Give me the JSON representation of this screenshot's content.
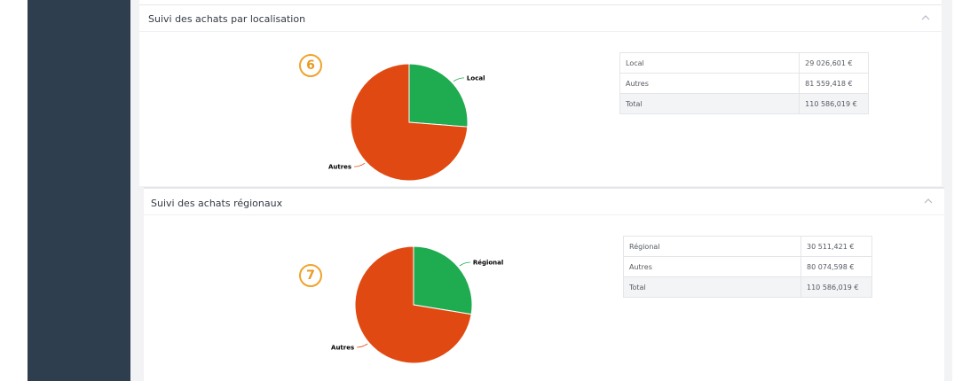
{
  "panels": [
    {
      "title": "Suivi des achats par localisation",
      "step": "6",
      "table": [
        {
          "label": "Local",
          "value": "29 026,601 €"
        },
        {
          "label": "Autres",
          "value": "81 559,418 €"
        },
        {
          "label": "Total",
          "value": "110 586,019 €"
        }
      ]
    },
    {
      "title": "Suivi des achats régionaux",
      "step": "7",
      "table": [
        {
          "label": "Régional",
          "value": "30 511,421 €"
        },
        {
          "label": "Autres",
          "value": "80 074,598 €"
        },
        {
          "label": "Total",
          "value": "110 586,019 €"
        }
      ]
    }
  ],
  "chart_data": [
    {
      "type": "pie",
      "slices": [
        {
          "label": "Local",
          "value": 29026.601,
          "color": "#1fab4f"
        },
        {
          "label": "Autres",
          "value": 81559.418,
          "color": "#e04a12"
        }
      ]
    },
    {
      "type": "pie",
      "slices": [
        {
          "label": "Régional",
          "value": 30511.421,
          "color": "#1fab4f"
        },
        {
          "label": "Autres",
          "value": 80074.598,
          "color": "#e04a12"
        }
      ]
    }
  ],
  "colors": {
    "sidebar": "#2f3e4f",
    "badge": "#f0a32b",
    "local_slice": "#1fab4f",
    "other_slice": "#e04a12"
  },
  "icons": {
    "collapse": "chevron-up-icon"
  }
}
